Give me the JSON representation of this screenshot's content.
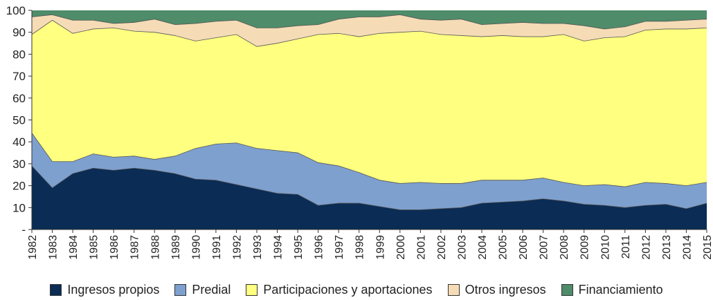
{
  "chart_data": {
    "type": "area",
    "stacked": true,
    "title": "",
    "xlabel": "",
    "ylabel": "",
    "ylim": [
      0,
      100
    ],
    "y_ticks": [
      "-",
      "10",
      "20",
      "30",
      "40",
      "50",
      "60",
      "70",
      "80",
      "90",
      "100"
    ],
    "categories": [
      "1982",
      "1983",
      "1984",
      "1985",
      "1986",
      "1987",
      "1988",
      "1989",
      "1990",
      "1991",
      "1992",
      "1993",
      "1994",
      "1995",
      "1996",
      "1997",
      "1998",
      "1999",
      "2000",
      "2001",
      "2002",
      "2003",
      "2004",
      "2005",
      "2006",
      "2007",
      "2008",
      "2009",
      "2010",
      "2011",
      "2012",
      "2013",
      "2014",
      "2015"
    ],
    "series": [
      {
        "name": "Ingresos propios",
        "color": "#0a2c55",
        "values": [
          29,
          19,
          25.5,
          28,
          27,
          28,
          27,
          25.5,
          23,
          22.5,
          20.5,
          18.5,
          16.5,
          16,
          11,
          12,
          12,
          10.5,
          9,
          9,
          9.5,
          10,
          12,
          12.5,
          13,
          14,
          13,
          11.5,
          11,
          10,
          11,
          11.5,
          9.5,
          12
        ]
      },
      {
        "name": "Predial",
        "color": "#7ea0cf",
        "values": [
          15,
          12,
          5.5,
          6.5,
          6,
          5.5,
          5,
          8,
          14,
          16.5,
          19,
          18.5,
          19.5,
          19,
          19.5,
          17,
          14,
          12,
          12,
          12.5,
          11.5,
          11,
          10.5,
          10,
          9.5,
          9.5,
          8.5,
          8.5,
          9.5,
          9.5,
          10.5,
          9.5,
          10.5,
          9.5
        ]
      },
      {
        "name": "Participaciones y aportaciones",
        "color": "#ffff80",
        "values": [
          45,
          64.5,
          58.5,
          57,
          59,
          57,
          58,
          55,
          49,
          48.5,
          49.5,
          46.5,
          49,
          52,
          58.5,
          60.5,
          62,
          67,
          69,
          69,
          68,
          67.5,
          65.5,
          66,
          65.5,
          64.5,
          67.5,
          66,
          67,
          68.5,
          69.5,
          70.5,
          71.5,
          70.5
        ]
      },
      {
        "name": "Otros ingresos",
        "color": "#f5dcb6",
        "values": [
          8,
          2.5,
          6,
          4,
          2,
          4,
          6,
          5,
          8,
          7.5,
          6.5,
          8.5,
          7,
          6,
          4.5,
          6.5,
          9,
          7.5,
          8,
          5.5,
          6.5,
          7.5,
          5.5,
          5.5,
          6.5,
          6,
          5,
          7,
          4,
          4.5,
          4,
          3.5,
          4,
          4
        ]
      },
      {
        "name": "Financiamiento",
        "color": "#4e8c6a",
        "values": [
          3,
          2,
          4.5,
          4.5,
          6,
          5.5,
          4,
          6.5,
          6,
          5,
          4.5,
          8,
          8,
          7,
          6.5,
          4,
          3,
          3,
          2,
          4,
          4.5,
          4,
          6.5,
          6,
          5.5,
          6,
          6,
          7,
          8.5,
          7.5,
          5,
          5,
          4.5,
          4
        ]
      }
    ],
    "legend_position": "bottom",
    "grid": false
  }
}
